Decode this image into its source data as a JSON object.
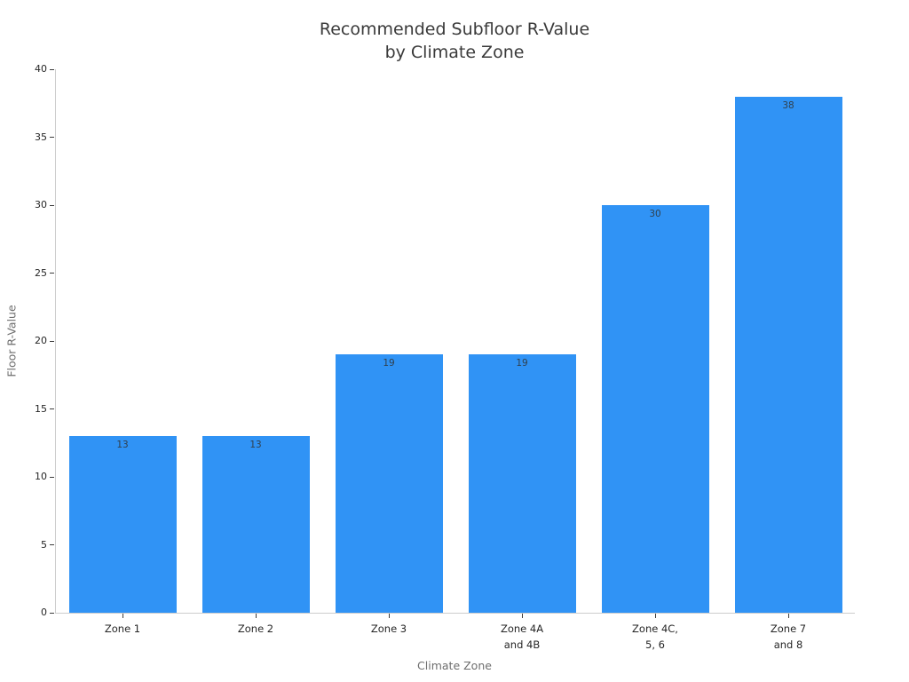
{
  "chart_data": {
    "type": "bar",
    "title": "Recommended Subfloor R-Value by Climate Zone",
    "title_lines": [
      "Recommended Subfloor R-Value",
      "by Climate Zone"
    ],
    "xlabel": "Climate Zone",
    "ylabel": "Floor R-Value",
    "categories": [
      "Zone 1",
      "Zone 2",
      "Zone 3",
      "Zone 4A\nand 4B",
      "Zone 4C,\n5, 6",
      "Zone 7\nand 8"
    ],
    "values": [
      13,
      13,
      19,
      19,
      30,
      38
    ],
    "value_labels": [
      "13",
      "13",
      "19",
      "19",
      "30",
      "38"
    ],
    "value_label_position": "inside-top",
    "ylim": [
      0,
      40
    ],
    "yticks": [
      0,
      5,
      10,
      15,
      20,
      25,
      30,
      35,
      40
    ],
    "grid": false,
    "legend": false,
    "colors": {
      "bar": "#3093f5",
      "title_text": "#3a3a3a",
      "tick_text": "#262626",
      "tick_mark": "#3c3c3c",
      "axis_line": "#cdcdcd",
      "axis_label_text": "#6e6e6e",
      "bar_value_text": "#31404d",
      "background": "#ffffff"
    }
  }
}
